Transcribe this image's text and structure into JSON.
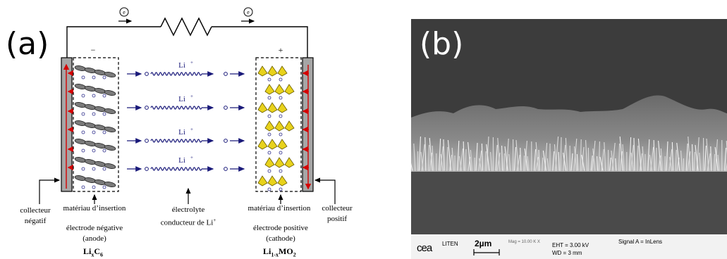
{
  "panel_a": {
    "label": "(a)",
    "electron": "e",
    "minus_sign": "−",
    "plus_sign": "+",
    "ion": "Li",
    "ion_charge": "+",
    "captions": {
      "negative_collector_1": "collecteur",
      "negative_collector_2": "négatif",
      "anode_material": "matériau d’insertion",
      "electrolyte_1": "électrolyte",
      "electrolyte_2": "conducteur de Li",
      "cathode_material": "matériau d’insertion",
      "positive_collector_1": "collecteur",
      "positive_collector_2": "positif",
      "anode_electrode_1": "électrode négative",
      "anode_electrode_2": "(anode)",
      "cathode_electrode_1": "électrode positive",
      "cathode_electrode_2": "(cathode)"
    },
    "anode_formula": {
      "a": "Li",
      "b": "x",
      "c": "C",
      "d": "6"
    },
    "cathode_formula": {
      "a": "Li",
      "b": "1-x",
      "c": "MO",
      "d": "2"
    }
  },
  "panel_b": {
    "label": "(b)",
    "databar": {
      "logo": "cea",
      "lab": "LITEN",
      "scale": "2µm",
      "mag": "Mag =  10.00 K X",
      "eht": "EHT =  3.00 kV",
      "wd": "WD =    3 mm",
      "signal": "Signal A = InLens"
    }
  },
  "colors": {
    "ion_arrow": "#1a1a7a",
    "electron_arrow": "#d40000",
    "cathode_crystal": "#e8d21c",
    "sem_background": "#3b3b3b"
  }
}
